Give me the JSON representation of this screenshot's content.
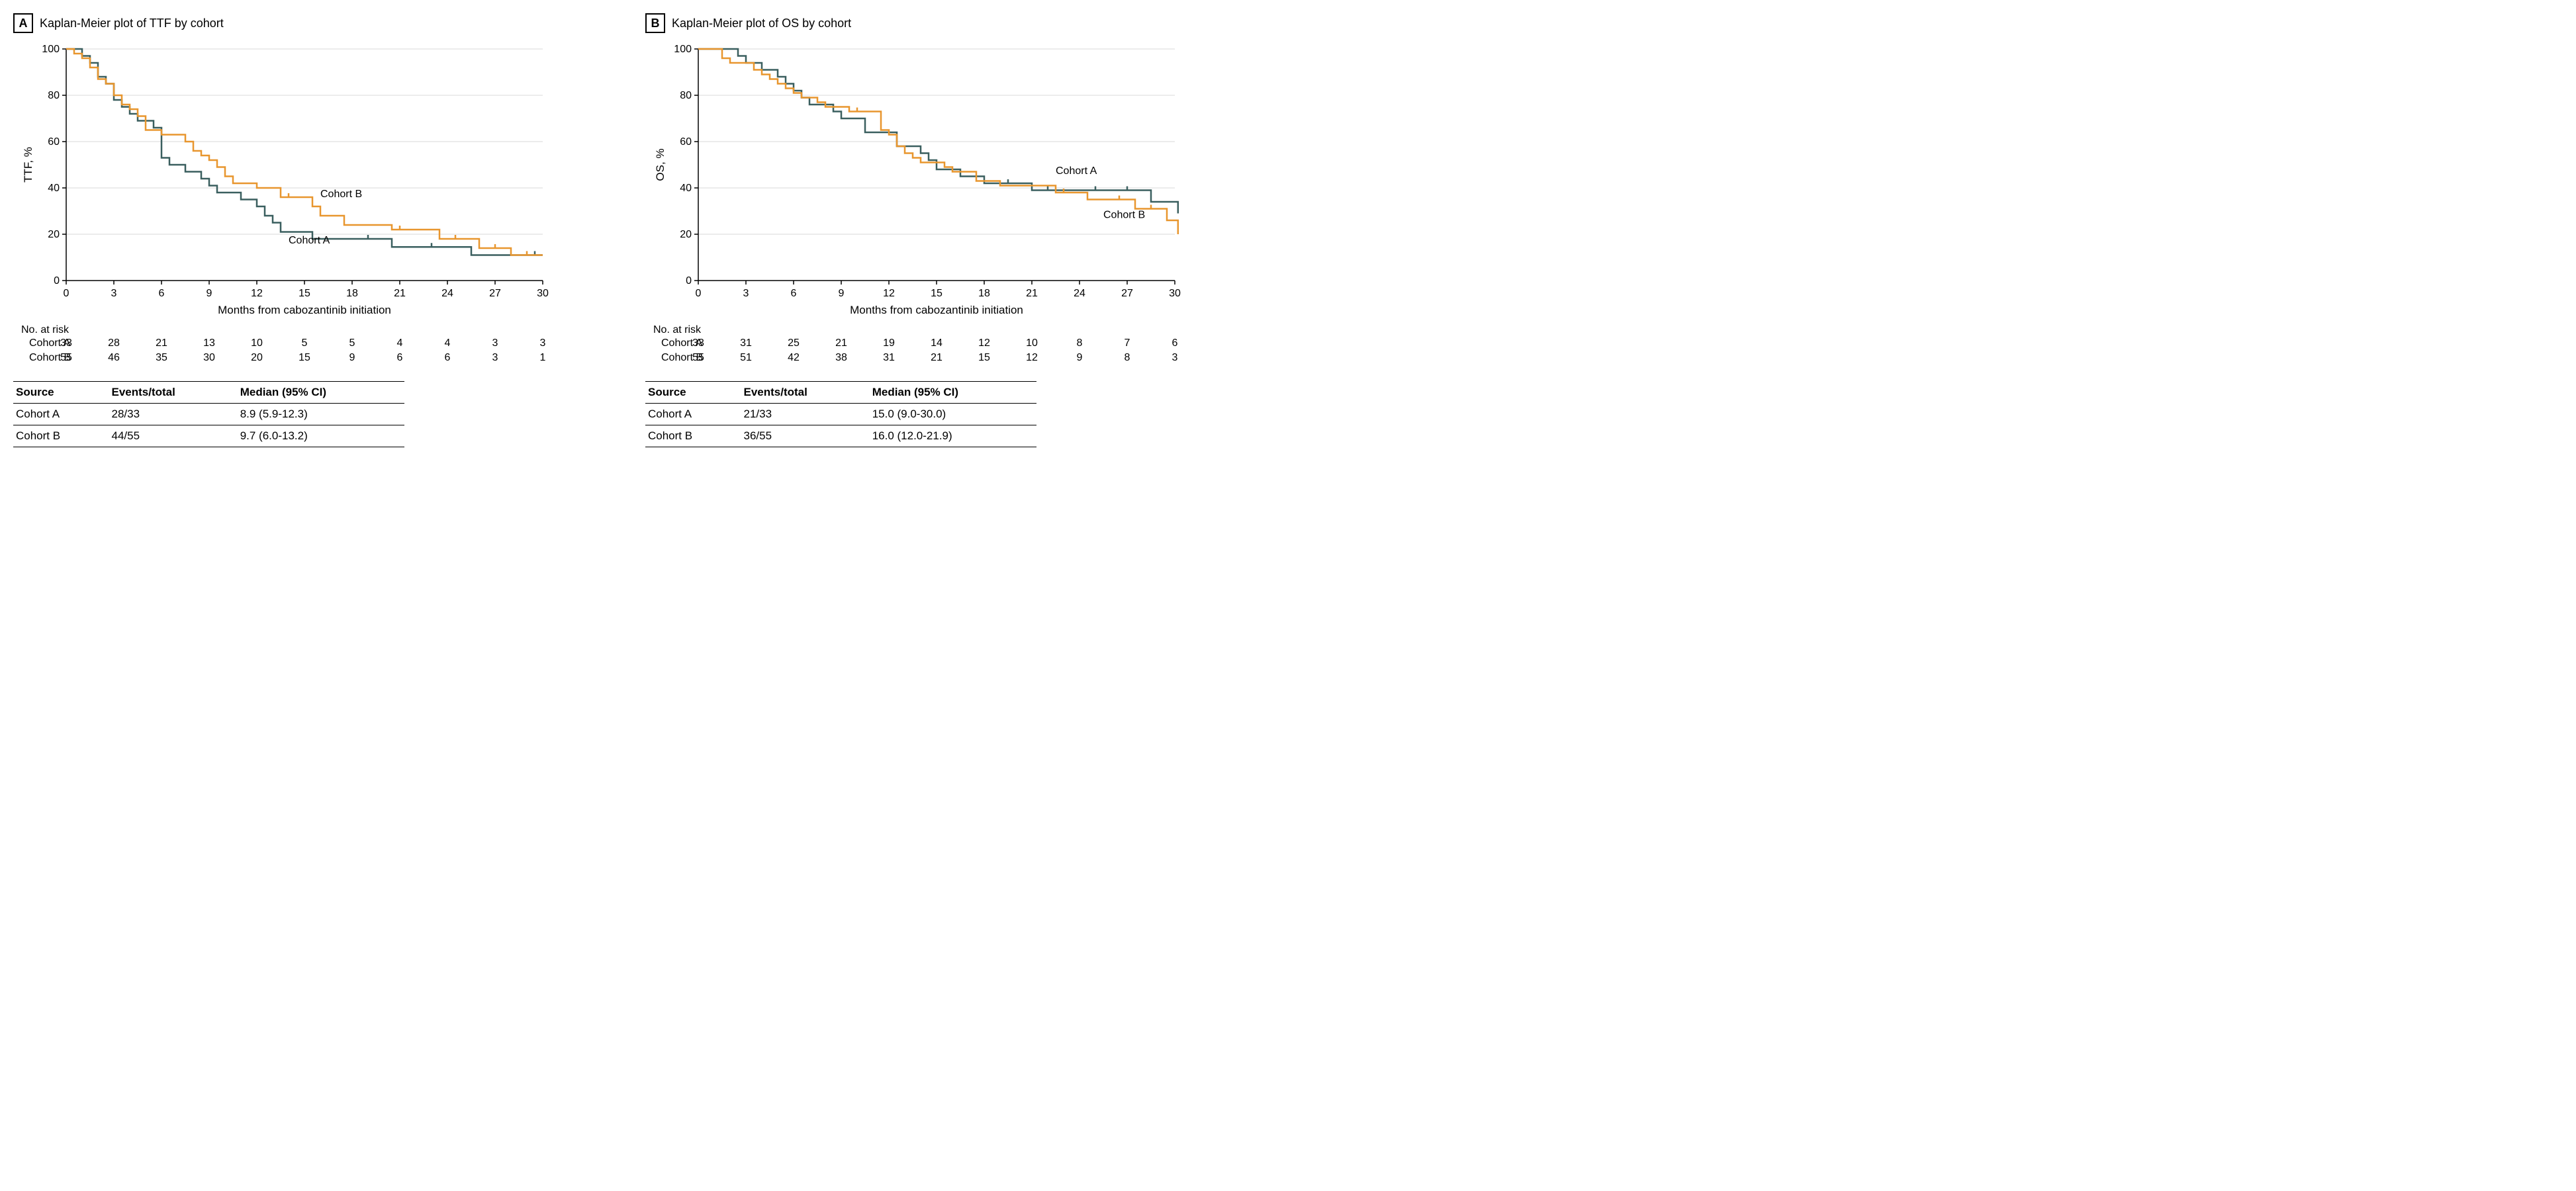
{
  "panels": [
    {
      "letter": "A",
      "title": "Kaplan-Meier plot of TTF by cohort",
      "chart": {
        "ylabel": "TTF, %",
        "xlabel": "Months from cabozantinib initiation",
        "xlim": [
          0,
          30
        ],
        "ylim": [
          0,
          100
        ],
        "xticks": [
          0,
          3,
          6,
          9,
          12,
          15,
          18,
          21,
          24,
          27,
          30
        ],
        "yticks": [
          0,
          20,
          40,
          60,
          80,
          100
        ],
        "axis_color": "#000000",
        "grid_color": "#d9d9d9",
        "bg_color": "#ffffff",
        "tick_fontsize": 16,
        "label_fontsize": 17,
        "line_width": 2.5,
        "series": [
          {
            "name": "Cohort A",
            "color": "#3a5f5f",
            "label_pos": [
              14.0,
              16
            ],
            "points": [
              [
                0,
                100
              ],
              [
                1,
                97
              ],
              [
                1.5,
                94
              ],
              [
                2,
                88
              ],
              [
                2.5,
                85
              ],
              [
                3,
                78
              ],
              [
                3.5,
                75
              ],
              [
                4,
                72
              ],
              [
                4.5,
                69
              ],
              [
                5,
                69
              ],
              [
                5.5,
                66
              ],
              [
                6,
                53
              ],
              [
                6.5,
                50
              ],
              [
                7,
                50
              ],
              [
                7.5,
                47
              ],
              [
                8,
                47
              ],
              [
                8.5,
                44
              ],
              [
                9,
                41
              ],
              [
                9.5,
                38
              ],
              [
                10.5,
                38
              ],
              [
                11,
                35
              ],
              [
                12,
                32
              ],
              [
                12.5,
                28
              ],
              [
                13,
                25
              ],
              [
                13.5,
                21
              ],
              [
                15,
                21
              ],
              [
                15.5,
                18
              ],
              [
                20,
                18
              ],
              [
                20.5,
                14.5
              ],
              [
                25,
                14.5
              ],
              [
                25.5,
                11
              ],
              [
                30,
                11
              ]
            ],
            "censors": [
              [
                19,
                18
              ],
              [
                23,
                14.5
              ],
              [
                29.5,
                11
              ]
            ]
          },
          {
            "name": "Cohort B",
            "color": "#e8962e",
            "label_pos": [
              16.0,
              36
            ],
            "points": [
              [
                0,
                100
              ],
              [
                0.5,
                98
              ],
              [
                1,
                96
              ],
              [
                1.5,
                92
              ],
              [
                2,
                87
              ],
              [
                2.5,
                85
              ],
              [
                3,
                80
              ],
              [
                3.5,
                76
              ],
              [
                4,
                74
              ],
              [
                4.5,
                71
              ],
              [
                5,
                65
              ],
              [
                5.5,
                65
              ],
              [
                6,
                63
              ],
              [
                7,
                63
              ],
              [
                7.5,
                60
              ],
              [
                8,
                56
              ],
              [
                8.5,
                54
              ],
              [
                9,
                52
              ],
              [
                9.5,
                49
              ],
              [
                10,
                45
              ],
              [
                10.5,
                42
              ],
              [
                11.5,
                42
              ],
              [
                12,
                40
              ],
              [
                13,
                40
              ],
              [
                13.5,
                36
              ],
              [
                15,
                36
              ],
              [
                15.5,
                32
              ],
              [
                16,
                28
              ],
              [
                17,
                28
              ],
              [
                17.5,
                24
              ],
              [
                20,
                24
              ],
              [
                20.5,
                22
              ],
              [
                23,
                22
              ],
              [
                23.5,
                18
              ],
              [
                25.5,
                18
              ],
              [
                26,
                14
              ],
              [
                27.5,
                14
              ],
              [
                28,
                11
              ],
              [
                30,
                11
              ]
            ],
            "censors": [
              [
                14,
                36
              ],
              [
                21,
                22
              ],
              [
                24.5,
                18
              ],
              [
                27,
                14
              ],
              [
                29,
                11
              ]
            ]
          }
        ]
      },
      "risk_label": "No. at risk",
      "risk_rows": [
        {
          "name": "Cohort A",
          "vals": [
            33,
            28,
            21,
            13,
            10,
            5,
            5,
            4,
            4,
            3,
            3
          ]
        },
        {
          "name": "Cohort B",
          "vals": [
            55,
            46,
            35,
            30,
            20,
            15,
            9,
            6,
            6,
            3,
            1
          ]
        }
      ],
      "summary": {
        "columns": [
          "Source",
          "Events/total",
          "Median (95% CI)"
        ],
        "rows": [
          [
            "Cohort A",
            "28/33",
            "8.9 (5.9-12.3)"
          ],
          [
            "Cohort B",
            "44/55",
            "9.7 (6.0-13.2)"
          ]
        ]
      }
    },
    {
      "letter": "B",
      "title": "Kaplan-Meier plot of OS by cohort",
      "chart": {
        "ylabel": "OS, %",
        "xlabel": "Months from cabozantinib initiation",
        "xlim": [
          0,
          30
        ],
        "ylim": [
          0,
          100
        ],
        "xticks": [
          0,
          3,
          6,
          9,
          12,
          15,
          18,
          21,
          24,
          27,
          30
        ],
        "yticks": [
          0,
          20,
          40,
          60,
          80,
          100
        ],
        "axis_color": "#000000",
        "grid_color": "#d9d9d9",
        "bg_color": "#ffffff",
        "tick_fontsize": 16,
        "label_fontsize": 17,
        "line_width": 2.5,
        "series": [
          {
            "name": "Cohort A",
            "color": "#3a5f5f",
            "label_pos": [
              22.5,
              46
            ],
            "points": [
              [
                0,
                100
              ],
              [
                2,
                100
              ],
              [
                2.5,
                97
              ],
              [
                3,
                94
              ],
              [
                4,
                91
              ],
              [
                5,
                88
              ],
              [
                5.5,
                85
              ],
              [
                6,
                82
              ],
              [
                6.5,
                79
              ],
              [
                7,
                76
              ],
              [
                8,
                76
              ],
              [
                8.5,
                73
              ],
              [
                9,
                70
              ],
              [
                10,
                70
              ],
              [
                10.5,
                64
              ],
              [
                12,
                64
              ],
              [
                12.5,
                58
              ],
              [
                13.5,
                58
              ],
              [
                14,
                55
              ],
              [
                14.5,
                52
              ],
              [
                15,
                48
              ],
              [
                16,
                48
              ],
              [
                16.5,
                45
              ],
              [
                17.5,
                45
              ],
              [
                18,
                42
              ],
              [
                20.5,
                42
              ],
              [
                21,
                39
              ],
              [
                28,
                39
              ],
              [
                28.5,
                34
              ],
              [
                30,
                34
              ],
              [
                30.2,
                29
              ]
            ],
            "censors": [
              [
                19.5,
                42
              ],
              [
                22,
                39
              ],
              [
                25,
                39
              ],
              [
                27,
                39
              ]
            ]
          },
          {
            "name": "Cohort B",
            "color": "#e8962e",
            "label_pos": [
              25.5,
              27
            ],
            "points": [
              [
                0,
                100
              ],
              [
                1,
                100
              ],
              [
                1.5,
                96
              ],
              [
                2,
                94
              ],
              [
                3,
                94
              ],
              [
                3.5,
                91
              ],
              [
                4,
                89
              ],
              [
                4.5,
                87
              ],
              [
                5,
                85
              ],
              [
                5.5,
                83
              ],
              [
                6,
                81
              ],
              [
                6.5,
                79
              ],
              [
                7,
                79
              ],
              [
                7.5,
                77
              ],
              [
                8,
                75
              ],
              [
                9,
                75
              ],
              [
                9.5,
                73
              ],
              [
                11,
                73
              ],
              [
                11.5,
                65
              ],
              [
                12,
                63
              ],
              [
                12.5,
                58
              ],
              [
                13,
                55
              ],
              [
                13.5,
                53
              ],
              [
                14,
                51
              ],
              [
                15,
                51
              ],
              [
                15.5,
                49
              ],
              [
                16,
                47
              ],
              [
                17,
                47
              ],
              [
                17.5,
                43
              ],
              [
                18.5,
                43
              ],
              [
                19,
                41
              ],
              [
                22,
                41
              ],
              [
                22.5,
                38
              ],
              [
                24,
                38
              ],
              [
                24.5,
                35
              ],
              [
                27,
                35
              ],
              [
                27.5,
                31
              ],
              [
                29,
                31
              ],
              [
                29.5,
                26
              ],
              [
                30,
                26
              ],
              [
                30.2,
                20
              ]
            ],
            "censors": [
              [
                10,
                73
              ],
              [
                23,
                38
              ],
              [
                26.5,
                35
              ],
              [
                28.5,
                31
              ]
            ]
          }
        ]
      },
      "risk_label": "No. at risk",
      "risk_rows": [
        {
          "name": "Cohort A",
          "vals": [
            33,
            31,
            25,
            21,
            19,
            14,
            12,
            10,
            8,
            7,
            6
          ]
        },
        {
          "name": "Cohort B",
          "vals": [
            55,
            51,
            42,
            38,
            31,
            21,
            15,
            12,
            9,
            8,
            3
          ]
        }
      ],
      "summary": {
        "columns": [
          "Source",
          "Events/total",
          "Median (95% CI)"
        ],
        "rows": [
          [
            "Cohort A",
            "21/33",
            "15.0 (9.0-30.0)"
          ],
          [
            "Cohort B",
            "36/55",
            "16.0 (12.0-21.9)"
          ]
        ]
      }
    }
  ]
}
